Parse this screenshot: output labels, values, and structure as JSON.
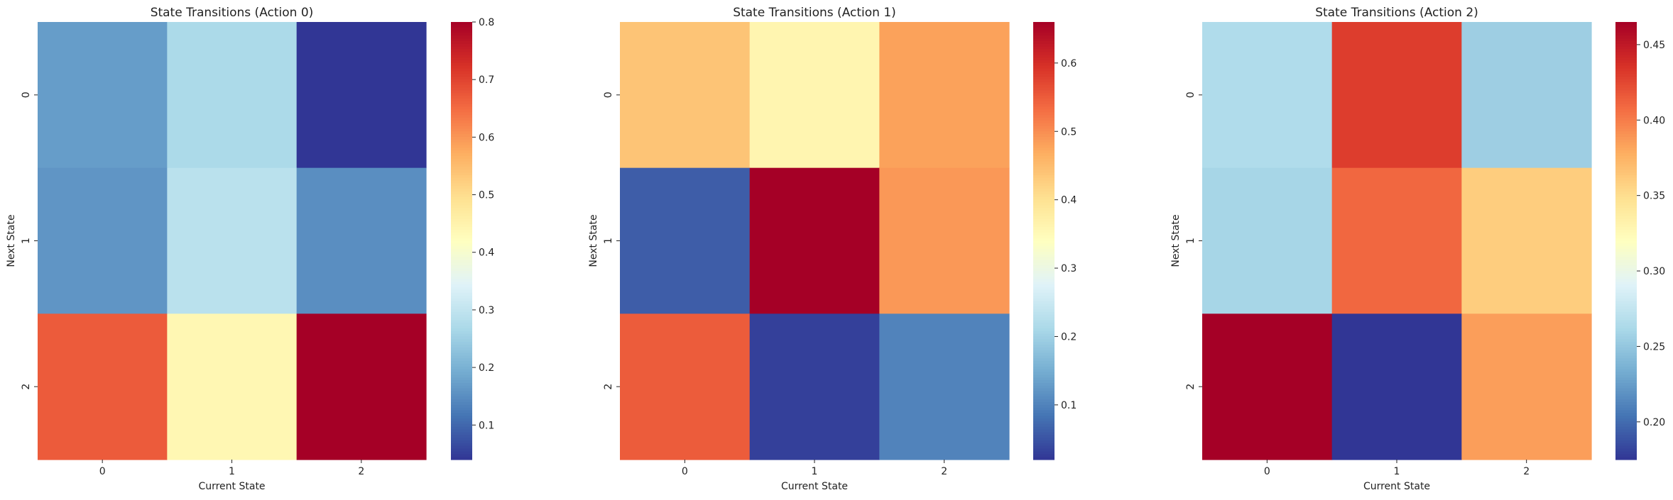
{
  "chart_data": [
    {
      "type": "heatmap",
      "title": "State Transitions (Action 0)",
      "xlabel": "Current State",
      "ylabel": "Next State",
      "x_categories": [
        "0",
        "1",
        "2"
      ],
      "y_categories": [
        "0",
        "1",
        "2"
      ],
      "values": [
        [
          0.17,
          0.27,
          0.04
        ],
        [
          0.16,
          0.29,
          0.15
        ],
        [
          0.67,
          0.44,
          0.8
        ]
      ],
      "colorbar": {
        "range": [
          0.04,
          0.8
        ],
        "ticks": [
          0.1,
          0.2,
          0.3,
          0.4,
          0.5,
          0.6,
          0.7,
          0.8
        ],
        "tick_labels": [
          "0.1",
          "0.2",
          "0.3",
          "0.4",
          "0.5",
          "0.6",
          "0.7",
          "0.8"
        ]
      },
      "colormap": "RdYlBu_r"
    },
    {
      "type": "heatmap",
      "title": "State Transitions (Action 1)",
      "xlabel": "Current State",
      "ylabel": "Next State",
      "x_categories": [
        "0",
        "1",
        "2"
      ],
      "y_categories": [
        "0",
        "1",
        "2"
      ],
      "values": [
        [
          0.44,
          0.36,
          0.48
        ],
        [
          0.06,
          0.66,
          0.49
        ],
        [
          0.55,
          0.03,
          0.1
        ]
      ],
      "colorbar": {
        "range": [
          0.02,
          0.66
        ],
        "ticks": [
          0.1,
          0.2,
          0.3,
          0.4,
          0.5,
          0.6
        ],
        "tick_labels": [
          "0.1",
          "0.2",
          "0.3",
          "0.4",
          "0.5",
          "0.6"
        ]
      },
      "colormap": "RdYlBu_r"
    },
    {
      "type": "heatmap",
      "title": "State Transitions (Action 2)",
      "xlabel": "Current State",
      "ylabel": "Next State",
      "x_categories": [
        "0",
        "1",
        "2"
      ],
      "y_categories": [
        "0",
        "1",
        "2"
      ],
      "values": [
        [
          0.265,
          0.43,
          0.255
        ],
        [
          0.26,
          0.41,
          0.36
        ],
        [
          0.465,
          0.175,
          0.385
        ]
      ],
      "colorbar": {
        "range": [
          0.175,
          0.465
        ],
        "ticks": [
          0.2,
          0.25,
          0.3,
          0.35,
          0.4,
          0.45
        ],
        "tick_labels": [
          "0.20",
          "0.25",
          "0.30",
          "0.35",
          "0.40",
          "0.45"
        ]
      },
      "colormap": "RdYlBu_r"
    }
  ]
}
